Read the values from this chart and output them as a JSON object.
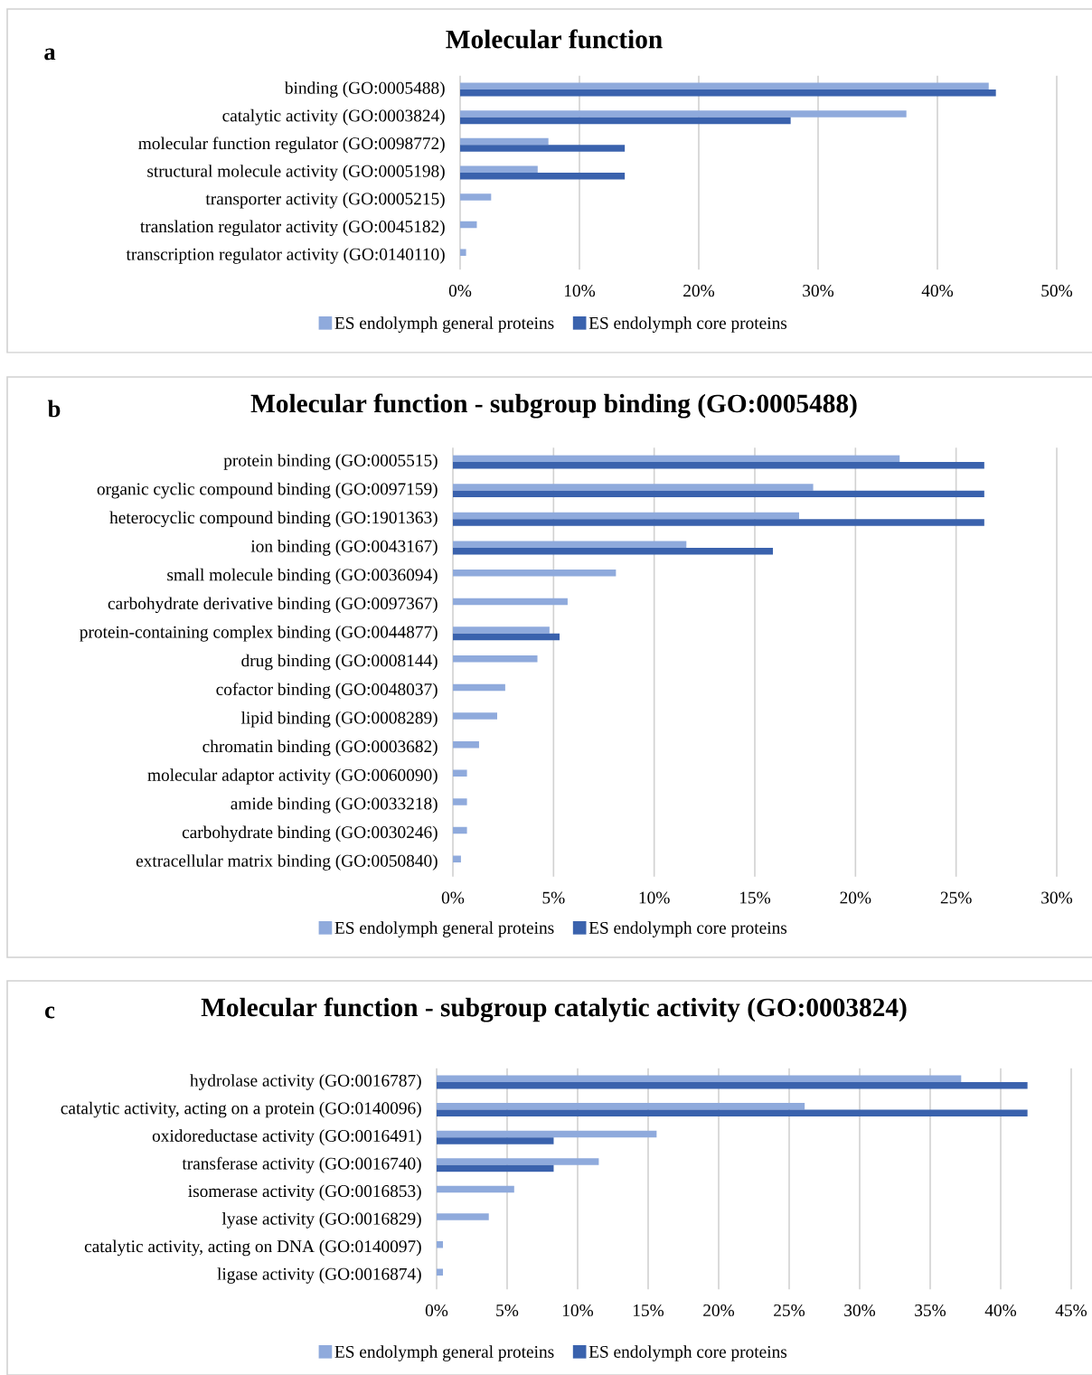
{
  "chart_data": [
    {
      "type": "bar",
      "orientation": "horizontal",
      "title": "Molecular function",
      "annotations": [
        "a"
      ],
      "categories": [
        "binding (GO:0005488)",
        "catalytic activity (GO:0003824)",
        "molecular function regulator (GO:0098772)",
        "structural molecule activity (GO:0005198)",
        "transporter activity (GO:0005215)",
        "translation regulator activity (GO:0045182)",
        "transcription regulator activity (GO:0140110)"
      ],
      "series": [
        {
          "name": "ES endolymph general proteins",
          "color": "#8faadc",
          "values": [
            44.3,
            37.4,
            7.4,
            6.5,
            2.6,
            1.4,
            0.5
          ]
        },
        {
          "name": "ES endolymph core proteins",
          "color": "#3a62ad",
          "values": [
            44.9,
            27.7,
            13.8,
            13.8,
            null,
            null,
            null
          ]
        }
      ],
      "xlim": [
        0,
        50
      ],
      "xticks": [
        {
          "value": 0,
          "label": "0%"
        },
        {
          "value": 10,
          "label": "10%"
        },
        {
          "value": 20,
          "label": "20%"
        },
        {
          "value": 30,
          "label": "30%"
        },
        {
          "value": 40,
          "label": "40%"
        },
        {
          "value": 50,
          "label": "50%"
        }
      ],
      "grid": "x",
      "legend": "bottom"
    },
    {
      "type": "bar",
      "orientation": "horizontal",
      "title": "Molecular function - subgroup binding (GO:0005488)",
      "annotations": [
        "b"
      ],
      "categories": [
        "protein binding (GO:0005515)",
        "organic cyclic compound binding (GO:0097159)",
        "heterocyclic compound binding (GO:1901363)",
        "ion binding (GO:0043167)",
        "small molecule binding (GO:0036094)",
        "carbohydrate derivative binding (GO:0097367)",
        "protein-containing complex binding (GO:0044877)",
        "drug binding (GO:0008144)",
        "cofactor binding (GO:0048037)",
        "lipid binding (GO:0008289)",
        "chromatin binding (GO:0003682)",
        "molecular adaptor activity (GO:0060090)",
        "amide binding (GO:0033218)",
        "carbohydrate binding (GO:0030246)",
        "extracellular matrix binding (GO:0050840)"
      ],
      "series": [
        {
          "name": "ES endolymph general proteins",
          "color": "#8faadc",
          "values": [
            22.2,
            17.9,
            17.2,
            11.6,
            8.1,
            5.7,
            4.8,
            4.2,
            2.6,
            2.2,
            1.3,
            0.7,
            0.7,
            0.7,
            0.4
          ]
        },
        {
          "name": "ES endolymph core proteins",
          "color": "#3a62ad",
          "values": [
            26.4,
            26.4,
            26.4,
            15.9,
            null,
            null,
            5.3,
            null,
            null,
            null,
            null,
            null,
            null,
            null,
            null
          ]
        }
      ],
      "xlim": [
        0,
        30
      ],
      "xticks": [
        {
          "value": 0,
          "label": "0%"
        },
        {
          "value": 5,
          "label": "5%"
        },
        {
          "value": 10,
          "label": "10%"
        },
        {
          "value": 15,
          "label": "15%"
        },
        {
          "value": 20,
          "label": "20%"
        },
        {
          "value": 25,
          "label": "25%"
        },
        {
          "value": 30,
          "label": "30%"
        }
      ],
      "grid": "x",
      "legend": "bottom"
    },
    {
      "type": "bar",
      "orientation": "horizontal",
      "title": "Molecular function - subgroup catalytic activity (GO:0003824)",
      "annotations": [
        "c"
      ],
      "categories": [
        "hydrolase activity (GO:0016787)",
        "catalytic activity, acting on a protein (GO:0140096)",
        "oxidoreductase activity (GO:0016491)",
        "transferase activity (GO:0016740)",
        "isomerase activity (GO:0016853)",
        "lyase activity (GO:0016829)",
        "catalytic activity, acting on DNA (GO:0140097)",
        "ligase activity (GO:0016874)"
      ],
      "series": [
        {
          "name": "ES endolymph general proteins",
          "color": "#8faadc",
          "values": [
            37.2,
            26.1,
            15.6,
            11.5,
            5.5,
            3.7,
            0.45,
            0.45
          ]
        },
        {
          "name": "ES endolymph core proteins",
          "color": "#3a62ad",
          "values": [
            41.9,
            41.9,
            8.3,
            8.3,
            null,
            null,
            null,
            null
          ]
        }
      ],
      "xlim": [
        0,
        45
      ],
      "xticks": [
        {
          "value": 0,
          "label": "0%"
        },
        {
          "value": 5,
          "label": "5%"
        },
        {
          "value": 10,
          "label": "10%"
        },
        {
          "value": 15,
          "label": "15%"
        },
        {
          "value": 20,
          "label": "20%"
        },
        {
          "value": 25,
          "label": "25%"
        },
        {
          "value": 30,
          "label": "30%"
        },
        {
          "value": 35,
          "label": "35%"
        },
        {
          "value": 40,
          "label": "40%"
        },
        {
          "value": 45,
          "label": "45%"
        }
      ],
      "grid": "x",
      "legend": "bottom"
    }
  ]
}
